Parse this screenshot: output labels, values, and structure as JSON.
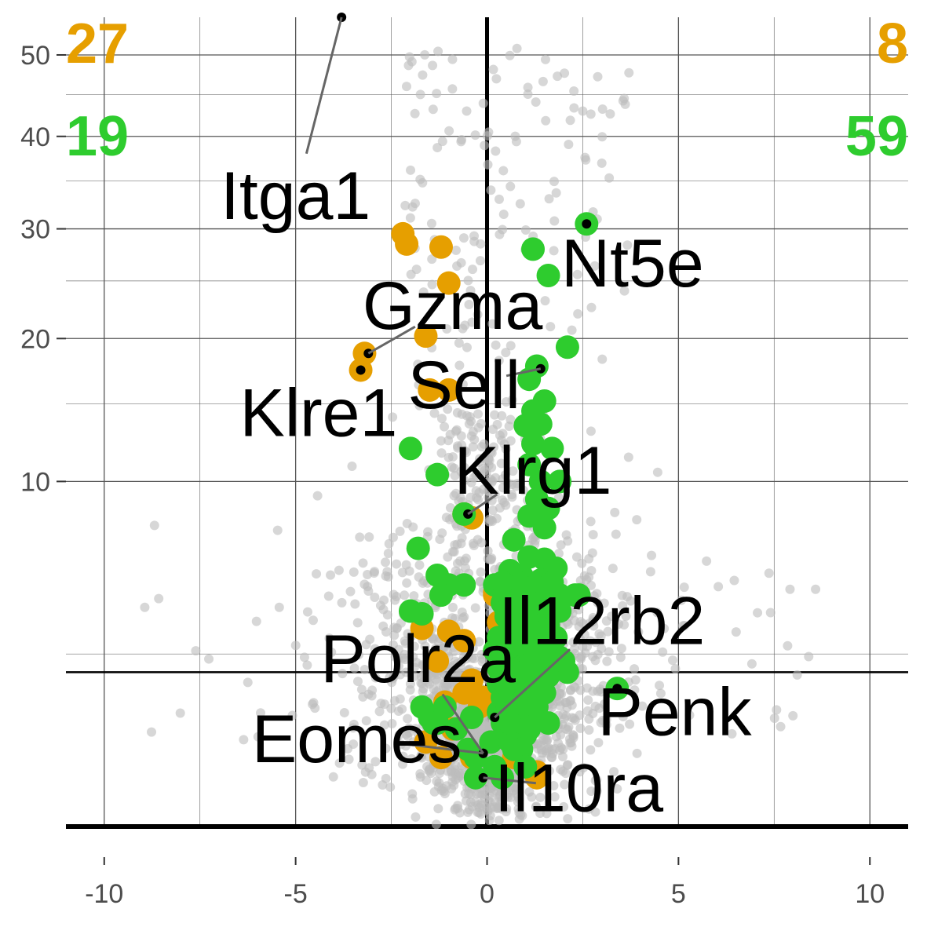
{
  "chart_data": {
    "type": "scatter",
    "title": "",
    "xlabel": "",
    "ylabel": "",
    "xlim": [
      -11,
      11
    ],
    "x_ticks": [
      -10,
      -5,
      0,
      5,
      10
    ],
    "x_tick_labels": [
      "-10",
      "-5",
      "0",
      "5",
      "10"
    ],
    "y_ticks": [
      10,
      20,
      30,
      40,
      50
    ],
    "y_tick_labels": [
      "10",
      "20",
      "30",
      "40",
      "50"
    ],
    "y_scale": "square-root",
    "grid": true,
    "reference_lines": {
      "vertical_x": 0,
      "horizontal_y": [
        0,
        2
      ]
    },
    "colors": {
      "background": "#bdbdbd",
      "orange": "#E69F00",
      "green": "#2ECC2E",
      "reference": "#000000",
      "grid": "#555555"
    },
    "counts": [
      {
        "text": "27",
        "color": "orange",
        "corner": "top-left"
      },
      {
        "text": "19",
        "color": "green",
        "corner": "upper-left"
      },
      {
        "text": "8",
        "color": "orange",
        "corner": "top-right"
      },
      {
        "text": "59",
        "color": "green",
        "corner": "upper-right"
      }
    ],
    "series": [
      {
        "color": "orange",
        "points": [
          [
            -2.2,
            29.5
          ],
          [
            -2.1,
            28.5
          ],
          [
            -1.2,
            28.2
          ],
          [
            -1.0,
            24.8
          ],
          [
            -1.6,
            20.2
          ],
          [
            -3.2,
            18.8
          ],
          [
            -3.3,
            17.5
          ],
          [
            -1.5,
            16.0
          ],
          [
            -1.0,
            16.0
          ],
          [
            -0.4,
            8.0
          ],
          [
            -0.6,
            8.2
          ],
          [
            -1.7,
            3.3
          ],
          [
            -1.0,
            3.2
          ],
          [
            -0.6,
            2.9
          ],
          [
            -1.3,
            2.3
          ],
          [
            -0.4,
            1.8
          ],
          [
            -0.6,
            1.5
          ],
          [
            -1.4,
            1.0
          ],
          [
            -0.9,
            0.8
          ],
          [
            -1.2,
            0.4
          ],
          [
            -0.4,
            0.4
          ],
          [
            0.2,
            4.5
          ],
          [
            1.3,
            0.25
          ],
          [
            -1.6,
            0.6
          ],
          [
            -1.1,
            1.3
          ],
          [
            -0.2,
            1.2
          ],
          [
            0.3,
            3.5
          ]
        ]
      },
      {
        "color": "orange",
        "points": [
          [
            1.3,
            0.2
          ],
          [
            0.2,
            4.6
          ],
          [
            -0.1,
            1.4
          ],
          [
            0.6,
            0.8
          ],
          [
            0.9,
            2.5
          ],
          [
            0.4,
            1.9
          ],
          [
            1.0,
            1.0
          ],
          [
            0.7,
            0.4
          ]
        ]
      },
      {
        "color": "green",
        "points": [
          [
            -1.3,
            0.9
          ],
          [
            0.2,
            2.6
          ],
          [
            0.3,
            2.1
          ],
          [
            0.5,
            1.5
          ],
          [
            0.9,
            1.0
          ],
          [
            1.1,
            1.8
          ],
          [
            0.7,
            3.1
          ],
          [
            0.5,
            3.7
          ],
          [
            1.2,
            4.2
          ],
          [
            0.8,
            5.0
          ],
          [
            1.5,
            6.0
          ],
          [
            1.8,
            4.3
          ],
          [
            0.6,
            4.7
          ],
          [
            1.3,
            2.0
          ],
          [
            0.4,
            0.2
          ],
          [
            1.6,
            3.4
          ],
          [
            0.9,
            2.3
          ],
          [
            0.1,
            0.6
          ],
          [
            1.4,
            5.1
          ],
          [
            0.3,
            1.1
          ],
          [
            2.4,
            4.5
          ],
          [
            0.7,
            0.5
          ],
          [
            1.0,
            3.8
          ],
          [
            0.2,
            0.3
          ],
          [
            1.7,
            2.8
          ],
          [
            0.5,
            2.4
          ],
          [
            0.8,
            1.3
          ],
          [
            1.1,
            1.1
          ],
          [
            0.6,
            0.8
          ],
          [
            1.9,
            4.5
          ],
          [
            0.4,
            4.2
          ],
          [
            0.9,
            5.3
          ],
          [
            1.2,
            3.0
          ],
          [
            0.7,
            2.0
          ],
          [
            0.3,
            1.7
          ],
          [
            1.5,
            4.9
          ],
          [
            1.0,
            0.7
          ],
          [
            0.6,
            3.3
          ],
          [
            1.8,
            5.6
          ],
          [
            0.2,
            4.9
          ],
          [
            1.3,
            1.5
          ],
          [
            0.8,
            4.0
          ],
          [
            0.5,
            1.3
          ],
          [
            1.1,
            2.6
          ],
          [
            1.6,
            1.9
          ],
          [
            0.4,
            0.9
          ],
          [
            0.9,
            3.5
          ],
          [
            1.4,
            2.2
          ],
          [
            0.7,
            1.6
          ],
          [
            1.2,
            0.9
          ],
          [
            0.3,
            3.0
          ],
          [
            1.0,
            4.6
          ],
          [
            1.5,
            3.6
          ],
          [
            0.6,
            2.7
          ],
          [
            1.9,
            2.4
          ],
          [
            1.2,
            4.8
          ],
          [
            0.8,
            2.9
          ],
          [
            1.3,
            3.9
          ],
          [
            0.5,
            2.0
          ]
        ]
      },
      {
        "color": "green",
        "points": [
          [
            -2.0,
            12.0
          ],
          [
            -1.3,
            10.4
          ],
          [
            -0.6,
            8.2
          ],
          [
            -1.8,
            6.5
          ],
          [
            -1.3,
            5.3
          ],
          [
            -1.0,
            4.9
          ],
          [
            -0.6,
            4.9
          ],
          [
            -2.0,
            3.9
          ],
          [
            -1.7,
            3.8
          ],
          [
            -1.5,
            1.0
          ],
          [
            -1.4,
            0.9
          ],
          [
            -1.1,
            1.2
          ],
          [
            -0.5,
            0.5
          ],
          [
            -0.3,
            0.4
          ],
          [
            -0.8,
            0.8
          ],
          [
            -1.7,
            1.2
          ],
          [
            -1.2,
            4.5
          ],
          [
            -0.3,
            0.2
          ],
          [
            -0.4,
            1.0
          ]
        ]
      },
      {
        "color": "green",
        "points": [
          [
            2.6,
            30.5
          ],
          [
            1.2,
            28.0
          ],
          [
            1.6,
            25.5
          ],
          [
            2.1,
            19.3
          ],
          [
            1.3,
            17.8
          ],
          [
            1.1,
            16.8
          ],
          [
            1.5,
            15.2
          ],
          [
            1.2,
            14.5
          ],
          [
            1.0,
            13.5
          ],
          [
            1.4,
            13.6
          ],
          [
            1.2,
            12.3
          ],
          [
            1.7,
            12.0
          ],
          [
            1.1,
            11.0
          ],
          [
            1.4,
            10.0
          ],
          [
            1.9,
            10.0
          ],
          [
            1.3,
            9.0
          ],
          [
            1.6,
            8.5
          ],
          [
            1.1,
            8.1
          ],
          [
            1.5,
            7.5
          ],
          [
            0.7,
            6.9
          ],
          [
            0.6,
            5.5
          ],
          [
            0.8,
            5.0
          ],
          [
            1.1,
            6.1
          ],
          [
            1.3,
            4.8
          ],
          [
            1.7,
            5.0
          ],
          [
            2.3,
            4.5
          ],
          [
            0.5,
            3.9
          ],
          [
            0.9,
            3.6
          ],
          [
            1.4,
            3.3
          ],
          [
            0.7,
            3.0
          ],
          [
            1.0,
            2.7
          ],
          [
            1.2,
            2.4
          ],
          [
            0.6,
            2.1
          ],
          [
            0.9,
            1.8
          ],
          [
            1.5,
            1.5
          ],
          [
            3.4,
            1.6
          ],
          [
            0.4,
            1.4
          ],
          [
            0.8,
            1.1
          ],
          [
            1.1,
            0.8
          ],
          [
            0.6,
            0.6
          ],
          [
            0.2,
            0.3
          ],
          [
            1.3,
            1.2
          ],
          [
            0.3,
            2.6
          ],
          [
            1.8,
            3.0
          ],
          [
            2.1,
            2.0
          ],
          [
            0.9,
            0.5
          ],
          [
            1.5,
            2.6
          ],
          [
            0.5,
            1.7
          ],
          [
            1.0,
            0.3
          ],
          [
            1.6,
            0.9
          ],
          [
            0.7,
            4.2
          ],
          [
            1.2,
            3.9
          ],
          [
            0.4,
            5.0
          ],
          [
            1.9,
            3.9
          ],
          [
            0.6,
            0.9
          ],
          [
            1.4,
            4.2
          ],
          [
            2.0,
            2.3
          ],
          [
            0.8,
            2.8
          ],
          [
            1.1,
            1.5
          ]
        ]
      }
    ],
    "highlighted_points": [
      {
        "gene": "Itga1",
        "x": -3.8,
        "y": 55.0
      },
      {
        "gene": "Gzma",
        "x": -3.1,
        "y": 18.8
      },
      {
        "gene": "Klre1",
        "x": -3.3,
        "y": 17.5
      },
      {
        "gene": "Sell",
        "x": 1.4,
        "y": 17.6
      },
      {
        "gene": "Klrg1",
        "x": -0.5,
        "y": 8.2
      },
      {
        "gene": "Nt5e",
        "x": 2.6,
        "y": 30.5
      },
      {
        "gene": "Il12rb2",
        "x": 0.2,
        "y": 1.0
      },
      {
        "gene": "Penk",
        "x": 3.4,
        "y": 1.6
      },
      {
        "gene": "Eomes",
        "x": -0.1,
        "y": 0.45
      },
      {
        "gene": "Il10ra",
        "x": -0.1,
        "y": 0.2
      },
      {
        "gene": "Polr2a",
        "x": -0.1,
        "y": 0.45
      }
    ],
    "annotations": [
      {
        "text": "Itga1",
        "ax": -5.0,
        "ay": 31.0,
        "point": "Itga1"
      },
      {
        "text": "Nt5e",
        "ax": 3.8,
        "ay": 24.5,
        "point": "Nt5e"
      },
      {
        "text": "Gzma",
        "ax": -0.9,
        "ay": 20.8,
        "point": "Gzma"
      },
      {
        "text": "Sell",
        "ax": -0.6,
        "ay": 14.7,
        "point": "Sell"
      },
      {
        "text": "Klre1",
        "ax": -4.4,
        "ay": 12.8,
        "point": "Klre1"
      },
      {
        "text": "Klrg1",
        "ax": 1.2,
        "ay": 9.3,
        "point": "Klrg1"
      },
      {
        "text": "Il12rb2",
        "ax": 3.0,
        "ay": 2.8,
        "point": "Il12rb2"
      },
      {
        "text": "Polr2a",
        "ax": -1.8,
        "ay": 1.75,
        "point": "Polr2a"
      },
      {
        "text": "Penk",
        "ax": 4.9,
        "ay": 0.7,
        "point": "Penk"
      },
      {
        "text": "Eomes",
        "ax": -3.4,
        "ay": 0.35,
        "point": "Eomes"
      },
      {
        "text": "Il10ra",
        "ax": 2.4,
        "ay": 0.02,
        "point": "Il10ra"
      }
    ]
  }
}
